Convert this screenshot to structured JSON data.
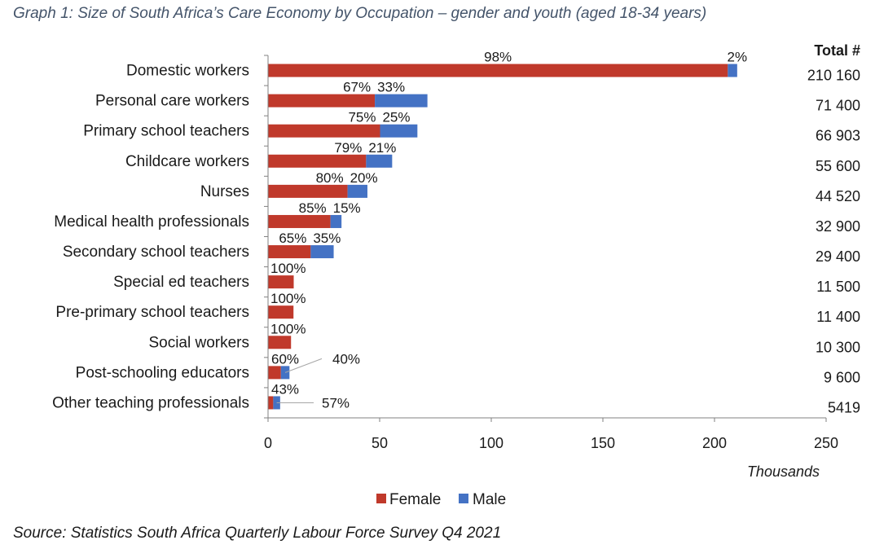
{
  "title": "Graph 1: Size of South Africa’s Care Economy by Occupation – gender and youth (aged 18-34 years)",
  "source": "Source: Statistics South Africa Quarterly Labour Force Survey Q4 2021",
  "colors": {
    "female": "#c0392b",
    "male": "#4472c4"
  },
  "chart_data": {
    "type": "bar",
    "orientation": "horizontal",
    "stacked": true,
    "title": "Graph 1: Size of South Africa’s Care Economy by Occupation – gender and youth (aged 18-34 years)",
    "xlabel": "Thousands",
    "xlim": [
      0,
      250
    ],
    "xticks": [
      "0",
      "50",
      "100",
      "150",
      "200",
      "250"
    ],
    "xtick_values": [
      0,
      50,
      100,
      150,
      200,
      250
    ],
    "totals_header": "Total #",
    "legend_position": "bottom",
    "categories": [
      "Domestic workers",
      "Personal care workers",
      "Primary school teachers",
      "Childcare workers",
      "Nurses",
      "Medical health professionals",
      "Secondary school teachers",
      "Special ed teachers",
      "Pre-primary school teachers",
      "Social workers",
      "Post-schooling educators",
      "Other teaching professionals"
    ],
    "totals_label": [
      "210 160",
      "71 400",
      "66 903",
      "55 600",
      "44 520",
      "32 900",
      "29 400",
      "11 500",
      "11 400",
      "10 300",
      "9 600",
      "5419"
    ],
    "series": [
      {
        "name": "Female",
        "values": [
          205.96,
          47.84,
          50.18,
          43.92,
          35.62,
          27.97,
          19.11,
          11.5,
          11.4,
          10.3,
          5.76,
          2.33
        ],
        "labels": [
          "98%",
          "67%",
          "75%",
          "79%",
          "80%",
          "85%",
          "65%",
          "100%",
          "100%",
          "100%",
          "60%",
          "43%"
        ]
      },
      {
        "name": "Male",
        "values": [
          4.2,
          23.56,
          16.73,
          11.68,
          8.9,
          4.94,
          10.29,
          0,
          0,
          0,
          3.84,
          3.09
        ],
        "labels": [
          "2%",
          "33%",
          "25%",
          "21%",
          "20%",
          "15%",
          "35%",
          "",
          "",
          "",
          "40%",
          "57%"
        ]
      }
    ]
  }
}
